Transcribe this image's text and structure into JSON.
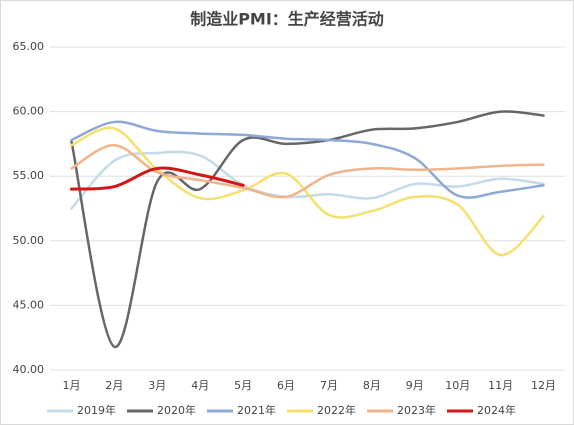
{
  "chart_data": {
    "type": "line",
    "title": "制造业PMI：生产经营活动",
    "categories": [
      "1月",
      "2月",
      "3月",
      "4月",
      "5月",
      "6月",
      "7月",
      "8月",
      "9月",
      "10月",
      "11月",
      "12月"
    ],
    "series": [
      {
        "name": "2019年",
        "color": "#c3dbe8",
        "values": [
          52.5,
          56.2,
          56.8,
          56.6,
          54.3,
          53.4,
          53.6,
          53.3,
          54.4,
          54.2,
          54.8,
          54.4
        ]
      },
      {
        "name": "2020年",
        "color": "#666666",
        "values": [
          57.7,
          41.8,
          54.6,
          54.0,
          57.8,
          57.5,
          57.8,
          58.6,
          58.7,
          59.2,
          60.0,
          59.7
        ]
      },
      {
        "name": "2021年",
        "color": "#8fa7d6",
        "values": [
          57.8,
          59.2,
          58.5,
          58.3,
          58.2,
          57.9,
          57.8,
          57.5,
          56.4,
          53.5,
          53.8,
          54.3
        ]
      },
      {
        "name": "2022年",
        "color": "#f6e06c",
        "values": [
          57.4,
          58.7,
          55.5,
          53.3,
          53.9,
          55.2,
          52.0,
          52.3,
          53.4,
          52.8,
          48.9,
          51.9
        ]
      },
      {
        "name": "2023年",
        "color": "#f0b48a",
        "values": [
          55.6,
          57.4,
          55.3,
          54.7,
          54.1,
          53.4,
          55.1,
          55.6,
          55.5,
          55.6,
          55.8,
          55.9
        ]
      },
      {
        "name": "2024年",
        "color": "#d41515",
        "values": [
          54.0,
          54.2,
          55.6,
          55.1,
          54.3,
          null,
          null,
          null,
          null,
          null,
          null,
          null
        ]
      }
    ],
    "ylim": [
      40,
      65
    ],
    "yticks": [
      {
        "value": 40,
        "label": "40.00"
      },
      {
        "value": 45,
        "label": "45.00"
      },
      {
        "value": 50,
        "label": "50.00"
      },
      {
        "value": 55,
        "label": "55.00"
      },
      {
        "value": 60,
        "label": "60.00"
      },
      {
        "value": 65,
        "label": "65.00"
      }
    ],
    "grid": true,
    "legend": "bottom"
  }
}
